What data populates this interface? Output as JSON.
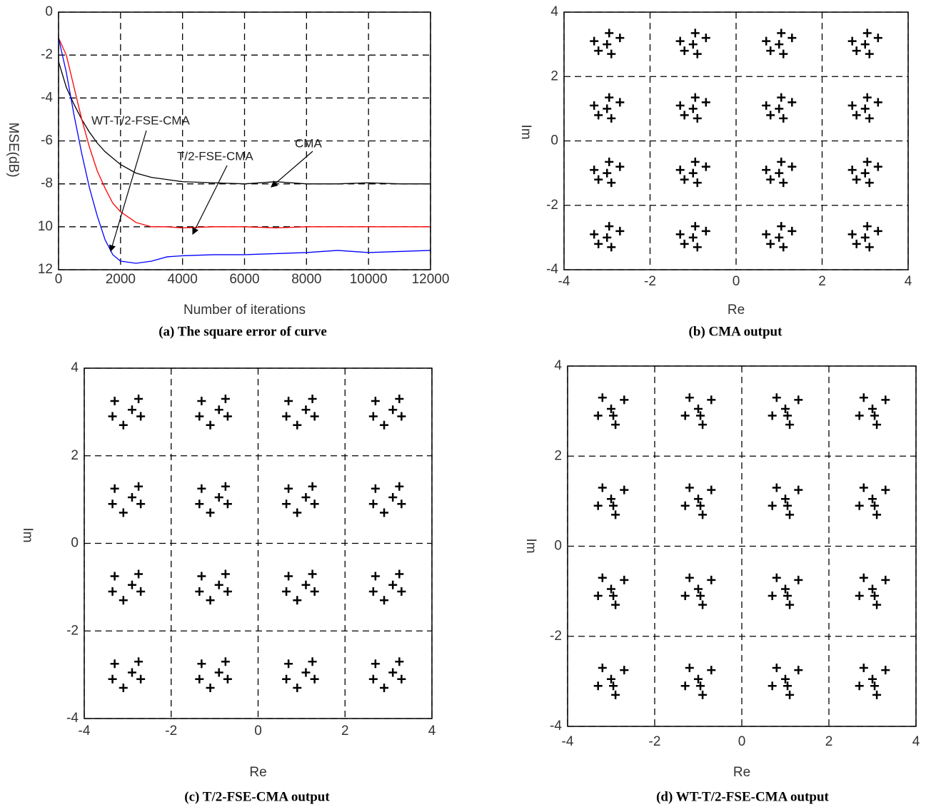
{
  "chart_data": [
    {
      "type": "line",
      "caption": "(a) The square error of curve",
      "xlabel": "Number of iterations",
      "ylabel": "MSE(dB)",
      "x": [
        0,
        250,
        500,
        750,
        1000,
        1250,
        1500,
        1750,
        2000,
        2500,
        3000,
        3500,
        4000,
        5000,
        6000,
        7000,
        8000,
        9000,
        10000,
        11000,
        12000
      ],
      "series": [
        {
          "name": "CMA",
          "color": "#000000",
          "values": [
            -2.3,
            -3.5,
            -4.3,
            -5,
            -5.6,
            -6.1,
            -6.5,
            -6.8,
            -7.1,
            -7.5,
            -7.7,
            -7.8,
            -7.9,
            -7.95,
            -8,
            -7.9,
            -8,
            -8,
            -7.95,
            -8,
            -8
          ]
        },
        {
          "name": "T/2-FSE-CMA",
          "color": "#ff0000",
          "values": [
            -1.2,
            -2,
            -3.5,
            -5,
            -6.3,
            -7.4,
            -8.2,
            -8.9,
            -9.3,
            -9.8,
            -10,
            -10,
            -10.05,
            -10,
            -10,
            -10.05,
            -10,
            -10,
            -10,
            -10,
            -10
          ]
        },
        {
          "name": "WT-T/2-FSE-CMA",
          "color": "#0000ff",
          "values": [
            -1.2,
            -2.8,
            -4.8,
            -6.6,
            -8.2,
            -9.5,
            -10.6,
            -11.3,
            -11.6,
            -11.7,
            -11.6,
            -11.4,
            -11.35,
            -11.3,
            -11.3,
            -11.25,
            -11.2,
            -11.1,
            -11.2,
            -11.15,
            -11.1
          ]
        }
      ],
      "xlim": [
        0,
        12000
      ],
      "xticks": [
        0,
        2000,
        4000,
        6000,
        8000,
        10000,
        12000
      ],
      "ylim": [
        -12,
        0
      ],
      "yticks": [
        0,
        -2,
        -4,
        -6,
        -8,
        {
          "value": -10,
          "label": "10"
        },
        {
          "value": -12,
          "label": "12"
        }
      ],
      "grid": true
    },
    {
      "type": "scatter",
      "caption": "(b) CMA output",
      "xlabel": "Re",
      "ylabel": "Im",
      "color": "#000000",
      "x": [
        -3,
        -2.7,
        -3.3,
        -2.9,
        -3.2,
        -2.95,
        -1,
        -0.7,
        -1.3,
        -0.9,
        -1.2,
        -0.95,
        1,
        1.3,
        0.7,
        1.1,
        0.8,
        1.05,
        3,
        3.3,
        2.7,
        3.1,
        2.8,
        3.05,
        -3,
        -2.7,
        -3.3,
        -2.9,
        -3.2,
        -2.95,
        -1,
        -0.7,
        -1.3,
        -0.9,
        -1.2,
        -0.95,
        1,
        1.3,
        0.7,
        1.1,
        0.8,
        1.05,
        3,
        3.3,
        2.7,
        3.1,
        2.8,
        3.05,
        -3,
        -2.7,
        -3.3,
        -2.9,
        -3.2,
        -2.95,
        -1,
        -0.7,
        -1.3,
        -0.9,
        -1.2,
        -0.95,
        1,
        1.3,
        0.7,
        1.1,
        0.8,
        1.05,
        3,
        3.3,
        2.7,
        3.1,
        2.8,
        3.05,
        -3,
        -2.7,
        -3.3,
        -2.9,
        -3.2,
        -2.95,
        -1,
        -0.7,
        -1.3,
        -0.9,
        -1.2,
        -0.95,
        1,
        1.3,
        0.7,
        1.1,
        0.8,
        1.05,
        3,
        3.3,
        2.7,
        3.1,
        2.8,
        3.05
      ],
      "values": [
        3,
        3.2,
        3.1,
        2.7,
        2.8,
        3.35,
        3,
        3.2,
        3.1,
        2.7,
        2.8,
        3.35,
        3,
        3.2,
        3.1,
        2.7,
        2.8,
        3.35,
        3,
        3.2,
        3.1,
        2.7,
        2.8,
        3.35,
        1,
        1.2,
        1.1,
        0.7,
        0.8,
        1.35,
        1,
        1.2,
        1.1,
        0.7,
        0.8,
        1.35,
        1,
        1.2,
        1.1,
        0.7,
        0.8,
        1.35,
        1,
        1.2,
        1.1,
        0.7,
        0.8,
        1.35,
        -1,
        -0.8,
        -0.9,
        -1.3,
        -1.2,
        -0.65,
        -1,
        -0.8,
        -0.9,
        -1.3,
        -1.2,
        -0.65,
        -1,
        -0.8,
        -0.9,
        -1.3,
        -1.2,
        -0.65,
        -1,
        -0.8,
        -0.9,
        -1.3,
        -1.2,
        -0.65,
        -3,
        -2.8,
        -2.9,
        -3.3,
        -3.2,
        -2.65,
        -3,
        -2.8,
        -2.9,
        -3.3,
        -3.2,
        -2.65,
        -3,
        -2.8,
        -2.9,
        -3.3,
        -3.2,
        -2.65,
        -3,
        -2.8,
        -2.9,
        -3.3,
        -3.2,
        -2.65
      ],
      "xlim": [
        -4,
        4
      ],
      "xticks": [
        -4,
        -2,
        0,
        2,
        4
      ],
      "ylim": [
        -4,
        4
      ],
      "yticks": [
        -4,
        -2,
        0,
        2,
        4
      ],
      "grid": true
    },
    {
      "type": "scatter",
      "caption": "(c) T/2-FSE-CMA output",
      "xlabel": "Re",
      "ylabel": "Im",
      "color": "#000000",
      "x": [
        -2.9,
        -3.3,
        -2.7,
        -3.1,
        -2.75,
        -3.35,
        -0.9,
        -1.3,
        -0.7,
        -1.1,
        -0.75,
        -1.35,
        1.1,
        0.7,
        1.3,
        0.9,
        1.25,
        0.65,
        3.1,
        2.7,
        3.3,
        2.9,
        3.25,
        2.65,
        -2.9,
        -3.3,
        -2.7,
        -3.1,
        -2.75,
        -3.35,
        -0.9,
        -1.3,
        -0.7,
        -1.1,
        -0.75,
        -1.35,
        1.1,
        0.7,
        1.3,
        0.9,
        1.25,
        0.65,
        3.1,
        2.7,
        3.3,
        2.9,
        3.25,
        2.65,
        -2.9,
        -3.3,
        -2.7,
        -3.1,
        -2.75,
        -3.35,
        -0.9,
        -1.3,
        -0.7,
        -1.1,
        -0.75,
        -1.35,
        1.1,
        0.7,
        1.3,
        0.9,
        1.25,
        0.65,
        3.1,
        2.7,
        3.3,
        2.9,
        3.25,
        2.65,
        -2.9,
        -3.3,
        -2.7,
        -3.1,
        -2.75,
        -3.35,
        -0.9,
        -1.3,
        -0.7,
        -1.1,
        -0.75,
        -1.35,
        1.1,
        0.7,
        1.3,
        0.9,
        1.25,
        0.65,
        3.1,
        2.7,
        3.3,
        2.9,
        3.25,
        2.65
      ],
      "values": [
        3.05,
        3.25,
        2.9,
        2.7,
        3.3,
        2.9,
        3.05,
        3.25,
        2.9,
        2.7,
        3.3,
        2.9,
        3.05,
        3.25,
        2.9,
        2.7,
        3.3,
        2.9,
        3.05,
        3.25,
        2.9,
        2.7,
        3.3,
        2.9,
        1.05,
        1.25,
        0.9,
        0.7,
        1.3,
        0.9,
        1.05,
        1.25,
        0.9,
        0.7,
        1.3,
        0.9,
        1.05,
        1.25,
        0.9,
        0.7,
        1.3,
        0.9,
        1.05,
        1.25,
        0.9,
        0.7,
        1.3,
        0.9,
        -0.95,
        -0.75,
        -1.1,
        -1.3,
        -0.7,
        -1.1,
        -0.95,
        -0.75,
        -1.1,
        -1.3,
        -0.7,
        -1.1,
        -0.95,
        -0.75,
        -1.1,
        -1.3,
        -0.7,
        -1.1,
        -0.95,
        -0.75,
        -1.1,
        -1.3,
        -0.7,
        -1.1,
        -2.95,
        -2.75,
        -3.1,
        -3.3,
        -2.7,
        -3.1,
        -2.95,
        -2.75,
        -3.1,
        -3.3,
        -2.7,
        -3.1,
        -2.95,
        -2.75,
        -3.1,
        -3.3,
        -2.7,
        -3.1,
        -2.95,
        -2.75,
        -3.1,
        -3.3,
        -2.7,
        -3.1
      ],
      "xlim": [
        -4,
        4
      ],
      "xticks": [
        -4,
        -2,
        0,
        2,
        4
      ],
      "ylim": [
        -4,
        4
      ],
      "yticks": [
        -4,
        -2,
        0,
        2,
        4
      ],
      "grid": true
    },
    {
      "type": "scatter",
      "caption": "(d) WT-T/2-FSE-CMA output",
      "xlabel": "Re",
      "ylabel": "Im",
      "color": "#000000",
      "x": [
        -3,
        -2.7,
        -3.3,
        -2.9,
        -3.2,
        -2.95,
        -1,
        -0.7,
        -1.3,
        -0.9,
        -1.2,
        -0.95,
        1,
        1.3,
        0.7,
        1.1,
        0.8,
        1.05,
        3,
        3.3,
        2.7,
        3.1,
        2.8,
        3.05,
        -3,
        -2.7,
        -3.3,
        -2.9,
        -3.2,
        -2.95,
        -1,
        -0.7,
        -1.3,
        -0.9,
        -1.2,
        -0.95,
        1,
        1.3,
        0.7,
        1.1,
        0.8,
        1.05,
        3,
        3.3,
        2.7,
        3.1,
        2.8,
        3.05,
        -3,
        -2.7,
        -3.3,
        -2.9,
        -3.2,
        -2.95,
        -1,
        -0.7,
        -1.3,
        -0.9,
        -1.2,
        -0.95,
        1,
        1.3,
        0.7,
        1.1,
        0.8,
        1.05,
        3,
        3.3,
        2.7,
        3.1,
        2.8,
        3.05,
        -3,
        -2.7,
        -3.3,
        -2.9,
        -3.2,
        -2.95,
        -1,
        -0.7,
        -1.3,
        -0.9,
        -1.2,
        -0.95,
        1,
        1.3,
        0.7,
        1.1,
        0.8,
        1.05,
        3,
        3.3,
        2.7,
        3.1,
        2.8,
        3.05
      ],
      "values": [
        3.05,
        3.25,
        2.9,
        2.7,
        3.3,
        2.9,
        3.05,
        3.25,
        2.9,
        2.7,
        3.3,
        2.9,
        3.05,
        3.25,
        2.9,
        2.7,
        3.3,
        2.9,
        3.05,
        3.25,
        2.9,
        2.7,
        3.3,
        2.9,
        1.05,
        1.25,
        0.9,
        0.7,
        1.3,
        0.9,
        1.05,
        1.25,
        0.9,
        0.7,
        1.3,
        0.9,
        1.05,
        1.25,
        0.9,
        0.7,
        1.3,
        0.9,
        1.05,
        1.25,
        0.9,
        0.7,
        1.3,
        0.9,
        -0.95,
        -0.75,
        -1.1,
        -1.3,
        -0.7,
        -1.1,
        -0.95,
        -0.75,
        -1.1,
        -1.3,
        -0.7,
        -1.1,
        -0.95,
        -0.75,
        -1.1,
        -1.3,
        -0.7,
        -1.1,
        -0.95,
        -0.75,
        -1.1,
        -1.3,
        -0.7,
        -1.1,
        -2.95,
        -2.75,
        -3.1,
        -3.3,
        -2.7,
        -3.1,
        -2.95,
        -2.75,
        -3.1,
        -3.3,
        -2.7,
        -3.1,
        -2.95,
        -2.75,
        -3.1,
        -3.3,
        -2.7,
        -3.1,
        -2.95,
        -2.75,
        -3.1,
        -3.3,
        -2.7,
        -3.1
      ],
      "xlim": [
        -4,
        4
      ],
      "xticks": [
        -4,
        -2,
        0,
        2,
        4
      ],
      "ylim": [
        -4,
        4
      ],
      "yticks": [
        -4,
        -2,
        0,
        2,
        4
      ],
      "grid": true
    }
  ]
}
